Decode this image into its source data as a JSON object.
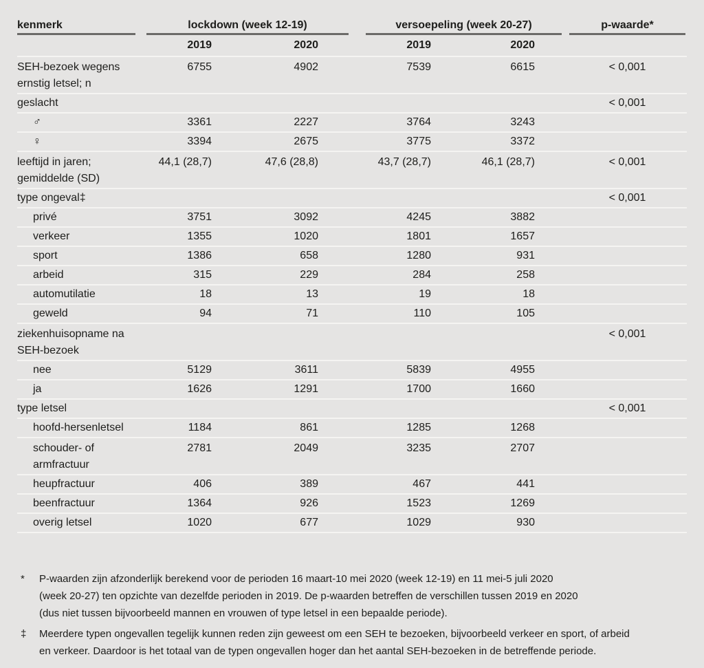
{
  "colors": {
    "background": "#e5e4e3",
    "text": "#1d1d1b",
    "header_rule": "#6b6a68",
    "row_separator": "#f5f4f2"
  },
  "table": {
    "header": {
      "kenmerk": "kenmerk",
      "groups": [
        {
          "label": "lockdown (week 12-19)",
          "years": [
            "2019",
            "2020"
          ]
        },
        {
          "label": "versoepeling (week 20-27)",
          "years": [
            "2019",
            "2020"
          ]
        }
      ],
      "p_label": "p-waarde*"
    },
    "rows": [
      {
        "label_lines": [
          "SEH-bezoek wegens",
          "ernstig letsel; n"
        ],
        "indent": false,
        "values": [
          "6755",
          "4902",
          "7539",
          "6615"
        ],
        "p": "< 0,001"
      },
      {
        "label_lines": [
          "geslacht"
        ],
        "indent": false,
        "values": [
          "",
          "",
          "",
          ""
        ],
        "p": "< 0,001"
      },
      {
        "label_lines": [
          "♂"
        ],
        "indent": true,
        "values": [
          "3361",
          "2227",
          "3764",
          "3243"
        ],
        "p": ""
      },
      {
        "label_lines": [
          "♀"
        ],
        "indent": true,
        "values": [
          "3394",
          "2675",
          "3775",
          "3372"
        ],
        "p": ""
      },
      {
        "label_lines": [
          "leeftijd in jaren;",
          "gemiddelde (SD)"
        ],
        "indent": false,
        "values": [
          "44,1 (28,7)",
          "47,6 (28,8)",
          "43,7 (28,7)",
          "46,1 (28,7)"
        ],
        "p": "< 0,001"
      },
      {
        "label_lines": [
          "type ongeval‡"
        ],
        "indent": false,
        "values": [
          "",
          "",
          "",
          ""
        ],
        "p": "< 0,001"
      },
      {
        "label_lines": [
          "privé"
        ],
        "indent": true,
        "values": [
          "3751",
          "3092",
          "4245",
          "3882"
        ],
        "p": ""
      },
      {
        "label_lines": [
          "verkeer"
        ],
        "indent": true,
        "values": [
          "1355",
          "1020",
          "1801",
          "1657"
        ],
        "p": ""
      },
      {
        "label_lines": [
          "sport"
        ],
        "indent": true,
        "values": [
          "1386",
          "658",
          "1280",
          "931"
        ],
        "p": ""
      },
      {
        "label_lines": [
          "arbeid"
        ],
        "indent": true,
        "values": [
          "315",
          "229",
          "284",
          "258"
        ],
        "p": ""
      },
      {
        "label_lines": [
          "automutilatie"
        ],
        "indent": true,
        "values": [
          "18",
          "13",
          "19",
          "18"
        ],
        "p": ""
      },
      {
        "label_lines": [
          "geweld"
        ],
        "indent": true,
        "values": [
          "94",
          "71",
          "110",
          "105"
        ],
        "p": ""
      },
      {
        "label_lines": [
          "ziekenhuisopname na",
          "SEH-bezoek"
        ],
        "indent": false,
        "values": [
          "",
          "",
          "",
          ""
        ],
        "p": "< 0,001"
      },
      {
        "label_lines": [
          "nee"
        ],
        "indent": true,
        "values": [
          "5129",
          "3611",
          "5839",
          "4955"
        ],
        "p": ""
      },
      {
        "label_lines": [
          "ja"
        ],
        "indent": true,
        "values": [
          "1626",
          "1291",
          "1700",
          "1660"
        ],
        "p": ""
      },
      {
        "label_lines": [
          "type letsel"
        ],
        "indent": false,
        "values": [
          "",
          "",
          "",
          ""
        ],
        "p": "< 0,001"
      },
      {
        "label_lines": [
          "hoofd-hersenletsel"
        ],
        "indent": true,
        "values": [
          "1184",
          "861",
          "1285",
          "1268"
        ],
        "p": ""
      },
      {
        "label_lines": [
          "schouder- of",
          "armfractuur"
        ],
        "indent": true,
        "values": [
          "2781",
          "2049",
          "3235",
          "2707"
        ],
        "p": ""
      },
      {
        "label_lines": [
          "heupfractuur"
        ],
        "indent": true,
        "values": [
          "406",
          "389",
          "467",
          "441"
        ],
        "p": ""
      },
      {
        "label_lines": [
          "beenfractuur"
        ],
        "indent": true,
        "values": [
          "1364",
          "926",
          "1523",
          "1269"
        ],
        "p": ""
      },
      {
        "label_lines": [
          "overig letsel"
        ],
        "indent": true,
        "values": [
          "1020",
          "677",
          "1029",
          "930"
        ],
        "p": ""
      }
    ]
  },
  "footnotes": [
    {
      "marker": "*",
      "lines": [
        "P-waarden zijn afzonderlijk berekend voor de perioden 16 maart-10 mei 2020 (week 12-19) en 11 mei-5 juli 2020",
        "(week 20-27) ten opzichte van dezelfde perioden in 2019. De p-waarden betreffen de verschillen tussen 2019 en 2020",
        "(dus niet tussen bijvoorbeeld mannen en vrouwen of type letsel in een bepaalde periode)."
      ]
    },
    {
      "marker": "‡",
      "lines": [
        "Meerdere typen ongevallen tegelijk kunnen reden zijn geweest om een SEH te bezoeken, bijvoorbeeld verkeer en sport, of arbeid",
        "en verkeer. Daardoor is het totaal van de typen ongevallen hoger dan het aantal SEH-bezoeken in de betreffende periode."
      ]
    }
  ]
}
